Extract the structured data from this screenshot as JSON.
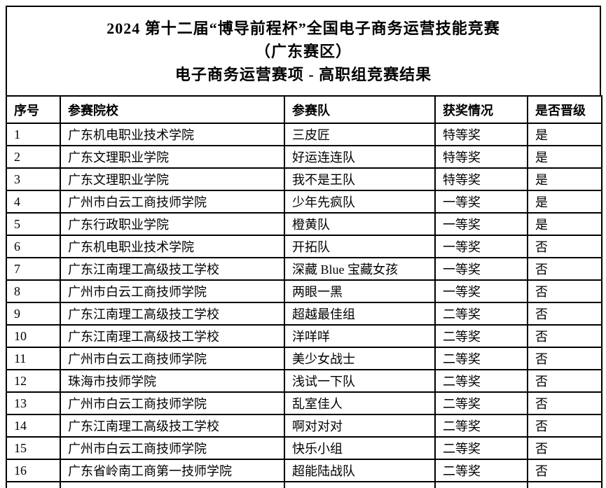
{
  "document": {
    "title_lines": [
      "2024 第十二届“博导前程杯”全国电子商务运营技能竞赛",
      "（广东赛区）",
      "电子商务运营赛项 - 高职组竞赛结果"
    ]
  },
  "table": {
    "columns": [
      "序号",
      "参赛院校",
      "参赛队",
      "获奖情况",
      "是否晋级"
    ],
    "rows": [
      [
        "1",
        "广东机电职业技术学院",
        "三皮匠",
        "特等奖",
        "是"
      ],
      [
        "2",
        "广东文理职业学院",
        "好运连连队",
        "特等奖",
        "是"
      ],
      [
        "3",
        "广东文理职业学院",
        "我不是王队",
        "特等奖",
        "是"
      ],
      [
        "4",
        "广州市白云工商技师学院",
        "少年先疯队",
        "一等奖",
        "是"
      ],
      [
        "5",
        "广东行政职业学院",
        "橙黄队",
        "一等奖",
        "是"
      ],
      [
        "6",
        "广东机电职业技术学院",
        "开拓队",
        "一等奖",
        "否"
      ],
      [
        "7",
        "广东江南理工高级技工学校",
        "深藏 Blue 宝藏女孩",
        "一等奖",
        "否"
      ],
      [
        "8",
        "广州市白云工商技师学院",
        "两眼一黑",
        "一等奖",
        "否"
      ],
      [
        "9",
        "广东江南理工高级技工学校",
        "超越最佳组",
        "二等奖",
        "否"
      ],
      [
        "10",
        "广东江南理工高级技工学校",
        "洋咩咩",
        "二等奖",
        "否"
      ],
      [
        "11",
        "广州市白云工商技师学院",
        "美少女战士",
        "二等奖",
        "否"
      ],
      [
        "12",
        "珠海市技师学院",
        "浅试一下队",
        "二等奖",
        "否"
      ],
      [
        "13",
        "广州市白云工商技师学院",
        "乱室佳人",
        "二等奖",
        "否"
      ],
      [
        "14",
        "广东江南理工高级技工学校",
        "啊对对对",
        "二等奖",
        "否"
      ],
      [
        "15",
        "广州市白云工商技师学院",
        "快乐小组",
        "二等奖",
        "否"
      ],
      [
        "16",
        "广东省岭南工商第一技师学院",
        "超能陆战队",
        "二等奖",
        "否"
      ]
    ]
  },
  "colors": {
    "text": "#000000",
    "border": "#000000",
    "background": "#ffffff"
  }
}
